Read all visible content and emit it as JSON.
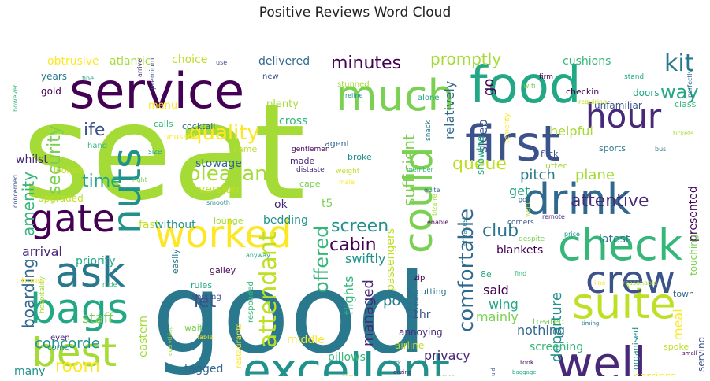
{
  "chart_data": {
    "type": "wordcloud",
    "title": "Positive Reviews Word Cloud",
    "colormap": "viridis",
    "background": "#ffffff",
    "words": [
      {
        "text": "seat",
        "weight": 100
      },
      {
        "text": "good",
        "weight": 88
      },
      {
        "text": "service",
        "weight": 48
      },
      {
        "text": "food",
        "weight": 48
      },
      {
        "text": "first",
        "weight": 46
      },
      {
        "text": "much",
        "weight": 40
      },
      {
        "text": "excellent",
        "weight": 40
      },
      {
        "text": "well",
        "weight": 40
      },
      {
        "text": "suite",
        "weight": 38
      },
      {
        "text": "drink",
        "weight": 38
      },
      {
        "text": "check",
        "weight": 36
      },
      {
        "text": "worked",
        "weight": 36
      },
      {
        "text": "best",
        "weight": 34
      },
      {
        "text": "ask",
        "weight": 34
      },
      {
        "text": "gate",
        "weight": 32
      },
      {
        "text": "bags",
        "weight": 32
      },
      {
        "text": "crew",
        "weight": 32
      },
      {
        "text": "could",
        "weight": 30
      },
      {
        "text": "nuts",
        "weight": 30
      },
      {
        "text": "hour",
        "weight": 28
      },
      {
        "text": "attendant",
        "weight": 22
      },
      {
        "text": "comfortable",
        "weight": 20
      },
      {
        "text": "offered",
        "weight": 20
      },
      {
        "text": "quality",
        "weight": 18
      },
      {
        "text": "pleasant",
        "weight": 18
      },
      {
        "text": "kit",
        "weight": 18
      },
      {
        "text": "minutes",
        "weight": 16
      },
      {
        "text": "way",
        "weight": 16
      },
      {
        "text": "ife",
        "weight": 16
      },
      {
        "text": "security",
        "weight": 16
      },
      {
        "text": "screen",
        "weight": 15
      },
      {
        "text": "attentive",
        "weight": 14
      },
      {
        "text": "queue",
        "weight": 14
      },
      {
        "text": "boarding",
        "weight": 14
      },
      {
        "text": "amenity",
        "weight": 14
      },
      {
        "text": "room",
        "weight": 14
      },
      {
        "text": "promptly",
        "weight": 14
      },
      {
        "text": "club",
        "weight": 14
      },
      {
        "text": "cabin",
        "weight": 14
      },
      {
        "text": "time",
        "weight": 14
      },
      {
        "text": "let",
        "weight": 14
      },
      {
        "text": "sufficient",
        "weight": 13
      },
      {
        "text": "departure",
        "weight": 12
      },
      {
        "text": "managed",
        "weight": 12
      },
      {
        "text": "passengers",
        "weight": 11
      },
      {
        "text": "relatively",
        "weight": 11
      },
      {
        "text": "flights",
        "weight": 11
      },
      {
        "text": "meal",
        "weight": 11
      },
      {
        "text": "plane",
        "weight": 11
      },
      {
        "text": "pitch",
        "weight": 11
      },
      {
        "text": "go",
        "weight": 11
      },
      {
        "text": "get",
        "weight": 11
      },
      {
        "text": "sleep",
        "weight": 11
      },
      {
        "text": "staff",
        "weight": 11
      },
      {
        "text": "concorde",
        "weight": 11
      },
      {
        "text": "privacy",
        "weight": 11
      },
      {
        "text": "choice",
        "weight": 10
      },
      {
        "text": "delivered",
        "weight": 10
      },
      {
        "text": "cushions",
        "weight": 10
      },
      {
        "text": "obtrusive",
        "weight": 9
      },
      {
        "text": "atlantic",
        "weight": 9
      },
      {
        "text": "point",
        "weight": 11
      },
      {
        "text": "said",
        "weight": 11
      },
      {
        "text": "wing",
        "weight": 10
      },
      {
        "text": "1hr",
        "weight": 10
      },
      {
        "text": "mainly",
        "weight": 10
      },
      {
        "text": "swiftly",
        "weight": 10
      },
      {
        "text": "arrival",
        "weight": 10
      },
      {
        "text": "fast",
        "weight": 10
      },
      {
        "text": "nothing",
        "weight": 10
      },
      {
        "text": "screening",
        "weight": 10
      },
      {
        "text": "carriers",
        "weight": 10
      },
      {
        "text": "helpful",
        "weight": 10
      },
      {
        "text": "latest",
        "weight": 9
      },
      {
        "text": "blankets",
        "weight": 9
      },
      {
        "text": "priority",
        "weight": 9
      },
      {
        "text": "special",
        "weight": 9
      },
      {
        "text": "early",
        "weight": 9
      },
      {
        "text": "many",
        "weight": 9
      },
      {
        "text": "whilst",
        "weight": 9
      },
      {
        "text": "upgraded",
        "weight": 8
      },
      {
        "text": "tagged",
        "weight": 9
      },
      {
        "text": "pillows",
        "weight": 9
      },
      {
        "text": "middle",
        "weight": 9
      },
      {
        "text": "eastern",
        "weight": 9
      },
      {
        "text": "one",
        "weight": 9
      },
      {
        "text": "presented",
        "weight": 9
      },
      {
        "text": "showing",
        "weight": 8
      },
      {
        "text": "serving",
        "weight": 8
      },
      {
        "text": "touching",
        "weight": 8
      },
      {
        "text": "bedding",
        "weight": 9
      },
      {
        "text": "ok",
        "weight": 9
      },
      {
        "text": "version",
        "weight": 9
      },
      {
        "text": "stowage",
        "weight": 9
      },
      {
        "text": "cross",
        "weight": 9
      },
      {
        "text": "menu",
        "weight": 9
      },
      {
        "text": "plenty",
        "weight": 9
      },
      {
        "text": "years",
        "weight": 8
      },
      {
        "text": "gold",
        "weight": 8
      },
      {
        "text": "doors",
        "weight": 8
      },
      {
        "text": "unfamiliar",
        "weight": 8
      },
      {
        "text": "t5",
        "weight": 9
      },
      {
        "text": "without",
        "weight": 9
      },
      {
        "text": "annoying",
        "weight": 8
      },
      {
        "text": "airline",
        "weight": 8
      },
      {
        "text": "question",
        "weight": 7
      },
      {
        "text": "responded",
        "weight": 7
      },
      {
        "text": "restaurants",
        "weight": 7
      },
      {
        "text": "hospitality",
        "weight": 6
      },
      {
        "text": "easily",
        "weight": 7
      },
      {
        "text": "galley",
        "weight": 7
      },
      {
        "text": "rules",
        "weight": 7
      },
      {
        "text": "working",
        "weight": 7
      },
      {
        "text": "treated",
        "weight": 7
      },
      {
        "text": "organised",
        "weight": 7
      },
      {
        "text": "business",
        "weight": 7
      },
      {
        "text": "spoke",
        "weight": 7
      },
      {
        "text": "town",
        "weight": 7
      },
      {
        "text": "class",
        "weight": 7
      },
      {
        "text": "disagreeable",
        "weight": 7
      },
      {
        "text": "lounge",
        "weight": 7
      },
      {
        "text": "cutting",
        "weight": 7
      },
      {
        "text": "zip",
        "weight": 6
      },
      {
        "text": "8e",
        "weight": 7
      },
      {
        "text": "flick",
        "weight": 7
      },
      {
        "text": "cape",
        "weight": 7
      },
      {
        "text": "broke",
        "weight": 7
      },
      {
        "text": "made",
        "weight": 7
      },
      {
        "text": "came",
        "weight": 7
      },
      {
        "text": "agent",
        "weight": 7
      },
      {
        "text": "calls",
        "weight": 7
      },
      {
        "text": "phone",
        "weight": 7
      },
      {
        "text": "utter",
        "weight": 7
      },
      {
        "text": "sports",
        "weight": 7
      },
      {
        "text": "checkin",
        "weight": 7
      },
      {
        "text": "alone",
        "weight": 6
      },
      {
        "text": "new",
        "weight": 6
      },
      {
        "text": "wait",
        "weight": 7
      },
      {
        "text": "come",
        "weight": 6
      },
      {
        "text": "even",
        "weight": 6
      },
      {
        "text": "looked",
        "weight": 7
      },
      {
        "text": "cocktail",
        "weight": 6
      },
      {
        "text": "hand",
        "weight": 6
      },
      {
        "text": "unusable",
        "weight": 6
      },
      {
        "text": "stunned",
        "weight": 6
      },
      {
        "text": "snack",
        "weight": 6
      },
      {
        "text": "firm",
        "weight": 6
      },
      {
        "text": "stand",
        "weight": 6
      },
      {
        "text": "premium",
        "weight": 6
      },
      {
        "text": "wifi",
        "weight": 6
      },
      {
        "text": "reline",
        "weight": 6
      },
      {
        "text": "arrive",
        "weight": 6
      },
      {
        "text": "requiring",
        "weight": 6
      },
      {
        "text": "perfectly",
        "weight": 5
      },
      {
        "text": "however",
        "weight": 5
      },
      {
        "text": "temerity",
        "weight": 6
      },
      {
        "text": "tickets",
        "weight": 5
      },
      {
        "text": "bus",
        "weight": 5
      },
      {
        "text": "gentlemen",
        "weight": 6
      },
      {
        "text": "size",
        "weight": 6
      },
      {
        "text": "concerned",
        "weight": 5
      },
      {
        "text": "right",
        "weight": 5
      },
      {
        "text": "smooth",
        "weight": 5
      },
      {
        "text": "distaste",
        "weight": 6
      },
      {
        "text": "weight",
        "weight": 6
      },
      {
        "text": "quite",
        "weight": 5
      },
      {
        "text": "member",
        "weight": 5
      },
      {
        "text": "male",
        "weight": 5
      },
      {
        "text": "bizarre",
        "weight": 5
      },
      {
        "text": "cheapest",
        "weight": 5
      },
      {
        "text": "enable",
        "weight": 5
      },
      {
        "text": "anyway",
        "weight": 5
      },
      {
        "text": "corners",
        "weight": 6
      },
      {
        "text": "despite",
        "weight": 6
      },
      {
        "text": "price",
        "weight": 5
      },
      {
        "text": "remote",
        "weight": 5
      },
      {
        "text": "went",
        "weight": 5
      },
      {
        "text": "got",
        "weight": 5
      },
      {
        "text": "find",
        "weight": 5
      },
      {
        "text": "line",
        "weight": 5
      },
      {
        "text": "reasonable",
        "weight": 5
      },
      {
        "text": "timing",
        "weight": 5
      },
      {
        "text": "took",
        "weight": 5
      },
      {
        "text": "baggage",
        "weight": 5
      },
      {
        "text": "would",
        "weight": 5
      },
      {
        "text": "place",
        "weight": 5
      },
      {
        "text": "work",
        "weight": 5
      },
      {
        "text": "dozing",
        "weight": 5
      },
      {
        "text": "easy",
        "weight": 5
      },
      {
        "text": "overall",
        "weight": 5
      },
      {
        "text": "rude",
        "weight": 5
      },
      {
        "text": "table",
        "weight": 5
      },
      {
        "text": "everything",
        "weight": 5
      },
      {
        "text": "allow",
        "weight": 5
      },
      {
        "text": "small",
        "weight": 5
      },
      {
        "text": "fine",
        "weight": 5
      },
      {
        "text": "use",
        "weight": 5
      }
    ]
  }
}
